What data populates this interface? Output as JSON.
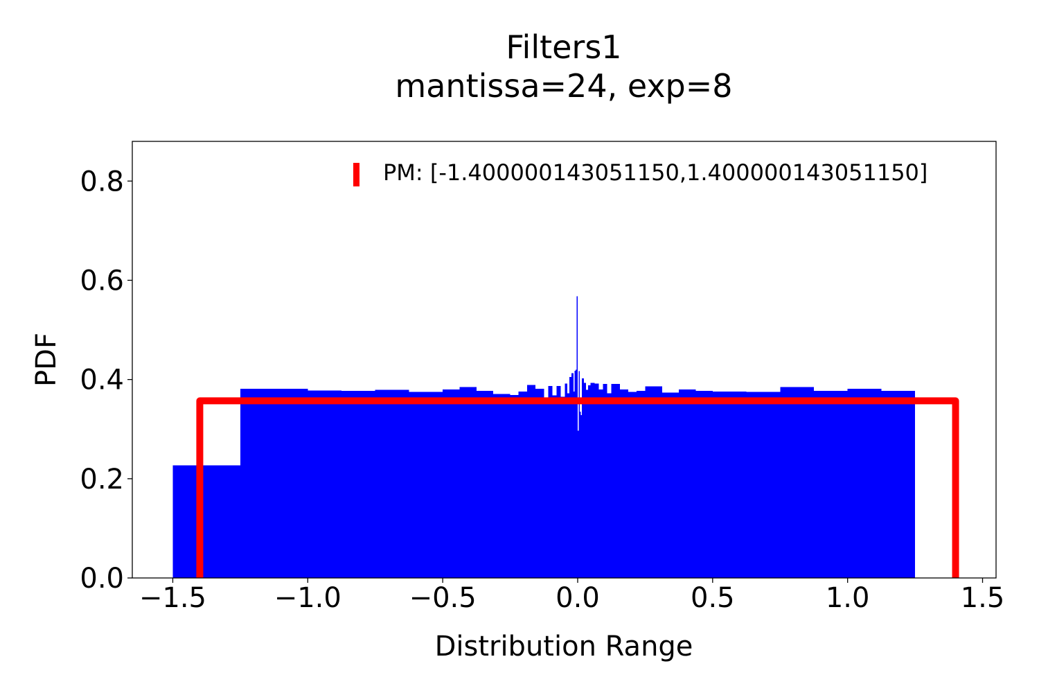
{
  "chart_data": {
    "type": "histogram",
    "title": "Filters1",
    "subtitle": "mantissa=24, exp=8",
    "xlabel": "Distribution Range",
    "ylabel": "PDF",
    "xlim": [
      -1.65,
      1.55
    ],
    "ylim": [
      0,
      0.88
    ],
    "xticks": [
      -1.5,
      -1.0,
      -0.5,
      0.0,
      0.5,
      1.0,
      1.5
    ],
    "xtick_labels": [
      "−1.5",
      "−1.0",
      "−0.5",
      "0.0",
      "0.5",
      "1.0",
      "1.5"
    ],
    "yticks": [
      0.0,
      0.2,
      0.4,
      0.6,
      0.8
    ],
    "ytick_labels": [
      "0.0",
      "0.2",
      "0.4",
      "0.6",
      "0.8"
    ],
    "grid": false,
    "legend_position": "top-right",
    "histogram": {
      "color": "#0000ff",
      "bins": [
        {
          "x0": -1.5,
          "x1": -1.25,
          "y": 0.227
        },
        {
          "x0": -1.25,
          "x1": -1.0,
          "y": 0.381
        },
        {
          "x0": -1.0,
          "x1": -0.875,
          "y": 0.378
        },
        {
          "x0": -0.875,
          "x1": -0.75,
          "y": 0.377
        },
        {
          "x0": -0.75,
          "x1": -0.625,
          "y": 0.379
        },
        {
          "x0": -0.625,
          "x1": -0.5,
          "y": 0.375
        },
        {
          "x0": -0.5,
          "x1": -0.4375,
          "y": 0.38
        },
        {
          "x0": -0.4375,
          "x1": -0.375,
          "y": 0.385
        },
        {
          "x0": -0.375,
          "x1": -0.3125,
          "y": 0.377
        },
        {
          "x0": -0.3125,
          "x1": -0.25,
          "y": 0.371
        },
        {
          "x0": -0.25,
          "x1": -0.21875,
          "y": 0.369
        },
        {
          "x0": -0.21875,
          "x1": -0.1875,
          "y": 0.376
        },
        {
          "x0": -0.1875,
          "x1": -0.15625,
          "y": 0.389
        },
        {
          "x0": -0.15625,
          "x1": -0.125,
          "y": 0.381
        },
        {
          "x0": -0.125,
          "x1": -0.109375,
          "y": 0.363
        },
        {
          "x0": -0.109375,
          "x1": -0.09375,
          "y": 0.387
        },
        {
          "x0": -0.09375,
          "x1": -0.078125,
          "y": 0.368
        },
        {
          "x0": -0.078125,
          "x1": -0.0625,
          "y": 0.387
        },
        {
          "x0": -0.0625,
          "x1": -0.046875,
          "y": 0.365
        },
        {
          "x0": -0.046875,
          "x1": -0.0390625,
          "y": 0.392
        },
        {
          "x0": -0.0390625,
          "x1": -0.03125,
          "y": 0.372
        },
        {
          "x0": -0.03125,
          "x1": -0.0234375,
          "y": 0.405
        },
        {
          "x0": -0.0234375,
          "x1": -0.015625,
          "y": 0.413
        },
        {
          "x0": -0.015625,
          "x1": -0.01171875,
          "y": 0.376
        },
        {
          "x0": -0.01171875,
          "x1": -0.0078125,
          "y": 0.418
        },
        {
          "x0": -0.0078125,
          "x1": -0.00390625,
          "y": 0.42
        },
        {
          "x0": -0.00390625,
          "x1": 0.0,
          "y": 0.568
        },
        {
          "x0": 0.0,
          "x1": 0.00390625,
          "y": 0.297
        },
        {
          "x0": 0.00390625,
          "x1": 0.0078125,
          "y": 0.417
        },
        {
          "x0": 0.0078125,
          "x1": 0.01171875,
          "y": 0.335
        },
        {
          "x0": 0.01171875,
          "x1": 0.015625,
          "y": 0.328
        },
        {
          "x0": 0.015625,
          "x1": 0.0234375,
          "y": 0.402
        },
        {
          "x0": 0.0234375,
          "x1": 0.03125,
          "y": 0.393
        },
        {
          "x0": 0.03125,
          "x1": 0.0390625,
          "y": 0.379
        },
        {
          "x0": 0.0390625,
          "x1": 0.046875,
          "y": 0.388
        },
        {
          "x0": 0.046875,
          "x1": 0.0625,
          "y": 0.393
        },
        {
          "x0": 0.0625,
          "x1": 0.078125,
          "y": 0.392
        },
        {
          "x0": 0.078125,
          "x1": 0.09375,
          "y": 0.38
        },
        {
          "x0": 0.09375,
          "x1": 0.109375,
          "y": 0.391
        },
        {
          "x0": 0.109375,
          "x1": 0.125,
          "y": 0.372
        },
        {
          "x0": 0.125,
          "x1": 0.15625,
          "y": 0.391
        },
        {
          "x0": 0.15625,
          "x1": 0.1875,
          "y": 0.38
        },
        {
          "x0": 0.1875,
          "x1": 0.21875,
          "y": 0.375
        },
        {
          "x0": 0.21875,
          "x1": 0.25,
          "y": 0.377
        },
        {
          "x0": 0.25,
          "x1": 0.3125,
          "y": 0.386
        },
        {
          "x0": 0.3125,
          "x1": 0.375,
          "y": 0.374
        },
        {
          "x0": 0.375,
          "x1": 0.4375,
          "y": 0.38
        },
        {
          "x0": 0.4375,
          "x1": 0.5,
          "y": 0.377
        },
        {
          "x0": 0.5,
          "x1": 0.625,
          "y": 0.376
        },
        {
          "x0": 0.625,
          "x1": 0.75,
          "y": 0.375
        },
        {
          "x0": 0.75,
          "x1": 0.875,
          "y": 0.385
        },
        {
          "x0": 0.875,
          "x1": 1.0,
          "y": 0.377
        },
        {
          "x0": 1.0,
          "x1": 1.125,
          "y": 0.381
        },
        {
          "x0": 1.125,
          "x1": 1.25,
          "y": 0.377
        }
      ]
    },
    "series": [
      {
        "name": "PM: [-1.400000143051150,1.400000143051150]",
        "type": "line",
        "color": "#ff0000",
        "x": [
          -1.4,
          -1.4,
          1.4,
          1.4
        ],
        "y": [
          0.0,
          0.357,
          0.357,
          0.0
        ]
      }
    ]
  }
}
